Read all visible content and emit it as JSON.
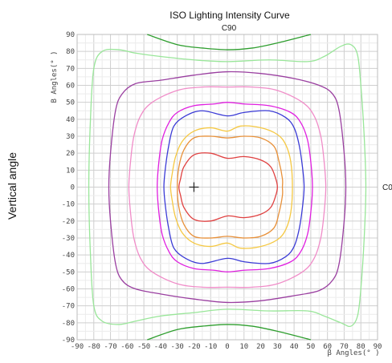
{
  "chart_data": {
    "type": "line",
    "title": "ISO Lighting Intensity Curve",
    "top_label": "C90",
    "right_label": "C0",
    "outer_ylabel": "Vertical angle",
    "ylabel": "B Angles(° )",
    "xlabel": "β Angles(° )",
    "xlim": [
      -90,
      90
    ],
    "ylim": [
      -90,
      90
    ],
    "x_ticks": [
      -90,
      -80,
      -70,
      -60,
      -50,
      -40,
      -30,
      -20,
      -10,
      0,
      10,
      20,
      30,
      40,
      50,
      60,
      70,
      80,
      90
    ],
    "y_ticks": [
      90,
      80,
      70,
      60,
      50,
      40,
      30,
      20,
      10,
      0,
      -10,
      -20,
      -30,
      -40,
      -50,
      -60,
      -70,
      -80,
      -90
    ],
    "grid": true,
    "marker": {
      "x": -20,
      "y": 0,
      "symbol": "+"
    },
    "series": [
      {
        "color": "#2e9e2e",
        "type": "cap",
        "values": [
          [
            -48,
            90
          ],
          [
            -30,
            84
          ],
          [
            -15,
            82
          ],
          [
            0,
            81
          ],
          [
            15,
            82
          ],
          [
            30,
            85
          ],
          [
            50,
            90
          ]
        ]
      },
      {
        "color": "#2e9e2e",
        "type": "cap",
        "values": [
          [
            -48,
            -90
          ],
          [
            -30,
            -84
          ],
          [
            -15,
            -82
          ],
          [
            0,
            -81
          ],
          [
            15,
            -82
          ],
          [
            30,
            -85
          ],
          [
            50,
            -90
          ]
        ]
      },
      {
        "color": "#99e699",
        "type": "closed",
        "values": [
          [
            -20,
            75
          ],
          [
            0,
            74
          ],
          [
            25,
            75
          ],
          [
            48,
            74
          ],
          [
            58,
            77
          ],
          [
            68,
            83
          ],
          [
            74,
            84
          ],
          [
            78,
            78
          ],
          [
            80,
            60
          ],
          [
            82,
            30
          ],
          [
            83,
            0
          ],
          [
            82,
            -30
          ],
          [
            80,
            -60
          ],
          [
            78,
            -76
          ],
          [
            74,
            -82
          ],
          [
            68,
            -80
          ],
          [
            58,
            -76
          ],
          [
            48,
            -73
          ],
          [
            25,
            -73
          ],
          [
            0,
            -72
          ],
          [
            -20,
            -74
          ],
          [
            -40,
            -76
          ],
          [
            -55,
            -79
          ],
          [
            -65,
            -81
          ],
          [
            -75,
            -79
          ],
          [
            -80,
            -70
          ],
          [
            -82,
            -40
          ],
          [
            -83,
            0
          ],
          [
            -82,
            40
          ],
          [
            -80,
            70
          ],
          [
            -75,
            80
          ],
          [
            -65,
            81
          ],
          [
            -55,
            79
          ],
          [
            -40,
            77
          ]
        ]
      },
      {
        "color": "#9a3fa0",
        "type": "closed",
        "values": [
          [
            -40,
            63
          ],
          [
            -20,
            66
          ],
          [
            0,
            68
          ],
          [
            20,
            67
          ],
          [
            40,
            64
          ],
          [
            55,
            60
          ],
          [
            63,
            55
          ],
          [
            67,
            45
          ],
          [
            70,
            20
          ],
          [
            71,
            0
          ],
          [
            70,
            -20
          ],
          [
            67,
            -45
          ],
          [
            63,
            -55
          ],
          [
            55,
            -61
          ],
          [
            40,
            -64
          ],
          [
            20,
            -67
          ],
          [
            0,
            -68
          ],
          [
            -20,
            -66
          ],
          [
            -40,
            -63
          ],
          [
            -55,
            -60
          ],
          [
            -63,
            -55
          ],
          [
            -67,
            -45
          ],
          [
            -70,
            -20
          ],
          [
            -71,
            0
          ],
          [
            -70,
            20
          ],
          [
            -67,
            45
          ],
          [
            -63,
            55
          ],
          [
            -55,
            61
          ]
        ]
      },
      {
        "color": "#f08cc8",
        "type": "closed",
        "values": [
          [
            -30,
            57
          ],
          [
            -15,
            59
          ],
          [
            0,
            59
          ],
          [
            15,
            59
          ],
          [
            30,
            57
          ],
          [
            45,
            50
          ],
          [
            52,
            42
          ],
          [
            56,
            30
          ],
          [
            58,
            15
          ],
          [
            59,
            0
          ],
          [
            58,
            -15
          ],
          [
            56,
            -30
          ],
          [
            52,
            -42
          ],
          [
            45,
            -50
          ],
          [
            30,
            -57
          ],
          [
            15,
            -59
          ],
          [
            0,
            -59
          ],
          [
            -15,
            -59
          ],
          [
            -30,
            -57
          ],
          [
            -45,
            -50
          ],
          [
            -52,
            -42
          ],
          [
            -56,
            -30
          ],
          [
            -58,
            -15
          ],
          [
            -59,
            0
          ],
          [
            -58,
            15
          ],
          [
            -56,
            30
          ],
          [
            -52,
            42
          ],
          [
            -45,
            50
          ]
        ]
      },
      {
        "color": "#e020e0",
        "type": "closed",
        "values": [
          [
            -20,
            48
          ],
          [
            -8,
            49
          ],
          [
            0,
            50
          ],
          [
            10,
            49
          ],
          [
            25,
            48
          ],
          [
            38,
            44
          ],
          [
            44,
            38
          ],
          [
            48,
            28
          ],
          [
            50,
            15
          ],
          [
            51,
            0
          ],
          [
            50,
            -15
          ],
          [
            48,
            -28
          ],
          [
            44,
            -38
          ],
          [
            38,
            -44
          ],
          [
            25,
            -48
          ],
          [
            10,
            -49
          ],
          [
            0,
            -50
          ],
          [
            -8,
            -49
          ],
          [
            -20,
            -48
          ],
          [
            -30,
            -44
          ],
          [
            -35,
            -38
          ],
          [
            -39,
            -28
          ],
          [
            -41,
            -15
          ],
          [
            -42,
            0
          ],
          [
            -41,
            15
          ],
          [
            -39,
            28
          ],
          [
            -35,
            38
          ],
          [
            -30,
            44
          ]
        ]
      },
      {
        "color": "#3b3bd6",
        "type": "closed",
        "values": [
          [
            -15,
            45
          ],
          [
            0,
            42
          ],
          [
            10,
            44
          ],
          [
            25,
            45
          ],
          [
            35,
            41
          ],
          [
            40,
            35
          ],
          [
            43,
            25
          ],
          [
            45,
            12
          ],
          [
            46,
            0
          ],
          [
            45,
            -12
          ],
          [
            43,
            -25
          ],
          [
            40,
            -35
          ],
          [
            35,
            -41
          ],
          [
            25,
            -45
          ],
          [
            10,
            -44
          ],
          [
            0,
            -42
          ],
          [
            -15,
            -45
          ],
          [
            -25,
            -42
          ],
          [
            -32,
            -36
          ],
          [
            -35,
            -25
          ],
          [
            -37,
            -12
          ],
          [
            -38,
            0
          ],
          [
            -37,
            12
          ],
          [
            -35,
            25
          ],
          [
            -32,
            36
          ],
          [
            -25,
            42
          ]
        ]
      },
      {
        "color": "#f5c842",
        "type": "closed",
        "values": [
          [
            -10,
            35
          ],
          [
            0,
            33
          ],
          [
            8,
            36
          ],
          [
            20,
            35
          ],
          [
            30,
            31
          ],
          [
            35,
            25
          ],
          [
            38,
            15
          ],
          [
            39,
            0
          ],
          [
            38,
            -15
          ],
          [
            35,
            -25
          ],
          [
            30,
            -31
          ],
          [
            20,
            -35
          ],
          [
            8,
            -36
          ],
          [
            0,
            -33
          ],
          [
            -10,
            -35
          ],
          [
            -20,
            -33
          ],
          [
            -27,
            -27
          ],
          [
            -31,
            -18
          ],
          [
            -33,
            -8
          ],
          [
            -34,
            0
          ],
          [
            -33,
            8
          ],
          [
            -31,
            18
          ],
          [
            -27,
            27
          ],
          [
            -20,
            33
          ]
        ]
      },
      {
        "color": "#e8913a",
        "type": "closed",
        "values": [
          [
            -10,
            30
          ],
          [
            0,
            29
          ],
          [
            10,
            30
          ],
          [
            20,
            29
          ],
          [
            28,
            24
          ],
          [
            31,
            15
          ],
          [
            33,
            5
          ],
          [
            33,
            0
          ],
          [
            33,
            -5
          ],
          [
            31,
            -15
          ],
          [
            28,
            -24
          ],
          [
            20,
            -29
          ],
          [
            10,
            -30
          ],
          [
            0,
            -29
          ],
          [
            -10,
            -30
          ],
          [
            -20,
            -29
          ],
          [
            -26,
            -22
          ],
          [
            -29,
            -12
          ],
          [
            -30,
            0
          ],
          [
            -29,
            12
          ],
          [
            -26,
            22
          ],
          [
            -20,
            29
          ]
        ]
      },
      {
        "color": "#e04040",
        "type": "closed",
        "values": [
          [
            -10,
            20
          ],
          [
            0,
            17
          ],
          [
            10,
            18
          ],
          [
            20,
            16
          ],
          [
            26,
            12
          ],
          [
            29,
            5
          ],
          [
            30,
            0
          ],
          [
            29,
            -5
          ],
          [
            26,
            -12
          ],
          [
            20,
            -16
          ],
          [
            10,
            -18
          ],
          [
            0,
            -17
          ],
          [
            -10,
            -20
          ],
          [
            -20,
            -19
          ],
          [
            -26,
            -12
          ],
          [
            -28,
            -5
          ],
          [
            -29,
            0
          ],
          [
            -28,
            5
          ],
          [
            -26,
            12
          ],
          [
            -20,
            19
          ]
        ]
      }
    ]
  }
}
